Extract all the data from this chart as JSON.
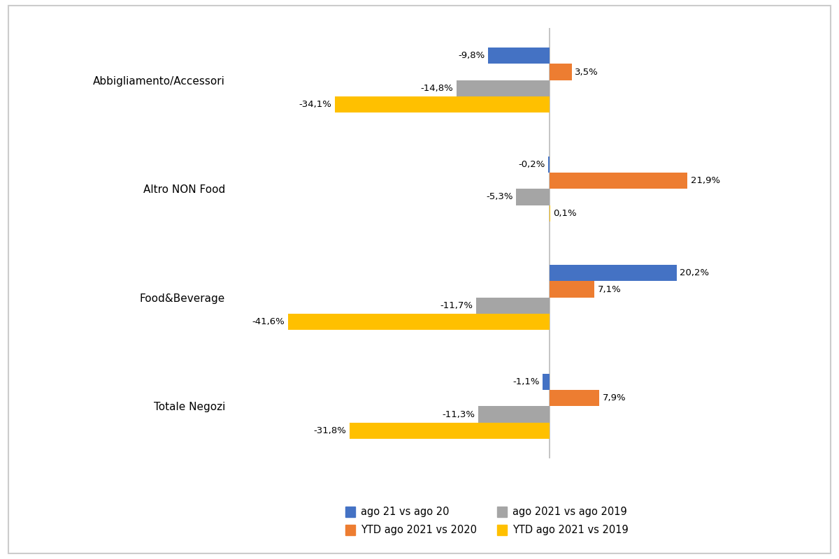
{
  "categories": [
    "Totale Negozi",
    "Food&Beverage",
    "Altro NON Food",
    "Abbigliamento/Accessori"
  ],
  "series": {
    "ago_21_vs_20": [
      -1.1,
      20.2,
      -0.2,
      -9.8
    ],
    "ytd_2021_vs_2020": [
      7.9,
      7.1,
      21.9,
      3.5
    ],
    "ago_2021_vs_2019": [
      -11.3,
      -11.7,
      -5.3,
      -14.8
    ],
    "ytd_2021_vs_2019": [
      -31.8,
      -41.6,
      0.1,
      -34.1
    ]
  },
  "colors": {
    "ago_21_vs_20": "#4472C4",
    "ytd_2021_vs_2020": "#ED7D31",
    "ago_2021_vs_2019": "#A5A5A5",
    "ytd_2021_vs_2019": "#FFC000"
  },
  "legend_labels": {
    "ago_21_vs_20": "ago 21 vs ago 20",
    "ytd_2021_vs_2020": "YTD ago 2021 vs 2020",
    "ago_2021_vs_2019": "ago 2021 vs ago 2019",
    "ytd_2021_vs_2019": "YTD ago 2021 vs 2019"
  },
  "series_order": [
    "ago_21_vs_20",
    "ytd_2021_vs_2020",
    "ago_2021_vs_2019",
    "ytd_2021_vs_2019"
  ],
  "bar_height": 0.15,
  "xlim": [
    -50,
    30
  ],
  "background_color": "#FFFFFF",
  "label_fontsize": 9.5,
  "category_fontsize": 11,
  "legend_fontsize": 10.5
}
